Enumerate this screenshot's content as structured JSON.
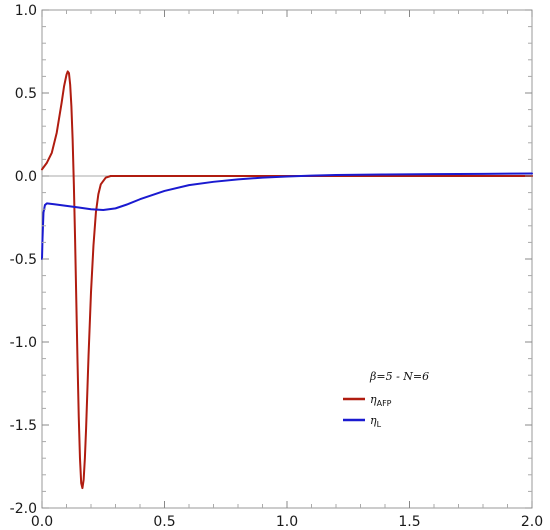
{
  "chart_data": {
    "type": "line",
    "title": "",
    "xlabel": "",
    "ylabel": "",
    "xlim": [
      0.0,
      2.0
    ],
    "ylim": [
      -2.0,
      1.0
    ],
    "xticks": [
      0.0,
      0.5,
      1.0,
      1.5,
      2.0
    ],
    "xtick_labels": [
      "0.0",
      "0.5",
      "1.0",
      "1.5",
      "2.0"
    ],
    "yticks": [
      1.0,
      0.5,
      0.0,
      -0.5,
      -1.0,
      -1.5,
      -2.0
    ],
    "ytick_labels": [
      "1.0",
      "0.5",
      "0.0",
      "-0.5",
      "-1.0",
      "-1.5",
      "-2.0"
    ],
    "grid": false,
    "legend": {
      "header": "β=5 - N=6",
      "placement": "lower-right",
      "entries": [
        {
          "symbol": "η",
          "subscript": "AFP",
          "color": "#b01c10"
        },
        {
          "symbol": "η",
          "subscript": "L",
          "color": "#1a1ad0"
        }
      ]
    },
    "series": [
      {
        "name": "η_AFP",
        "color": "#b01c10",
        "x": [
          0.0,
          0.02,
          0.04,
          0.06,
          0.08,
          0.09,
          0.1,
          0.105,
          0.11,
          0.115,
          0.12,
          0.125,
          0.13,
          0.135,
          0.14,
          0.145,
          0.15,
          0.155,
          0.16,
          0.165,
          0.17,
          0.175,
          0.18,
          0.185,
          0.19,
          0.2,
          0.21,
          0.22,
          0.23,
          0.24,
          0.26,
          0.28,
          0.3,
          0.32,
          0.35,
          0.4,
          0.6,
          1.0,
          1.5,
          2.0
        ],
        "y": [
          0.04,
          0.08,
          0.14,
          0.26,
          0.44,
          0.54,
          0.61,
          0.63,
          0.62,
          0.55,
          0.42,
          0.22,
          -0.05,
          -0.38,
          -0.75,
          -1.12,
          -1.45,
          -1.7,
          -1.85,
          -1.88,
          -1.83,
          -1.7,
          -1.52,
          -1.3,
          -1.08,
          -0.7,
          -0.42,
          -0.22,
          -0.11,
          -0.05,
          -0.01,
          0.0,
          0.0,
          0.0,
          0.0,
          0.0,
          0.0,
          0.0,
          0.0,
          0.0
        ]
      },
      {
        "name": "η_L",
        "color": "#1a1ad0",
        "x": [
          0.0,
          0.002,
          0.006,
          0.012,
          0.02,
          0.05,
          0.1,
          0.15,
          0.2,
          0.25,
          0.3,
          0.35,
          0.4,
          0.5,
          0.6,
          0.7,
          0.8,
          0.9,
          1.0,
          1.1,
          1.2,
          1.4,
          1.6,
          1.8,
          2.0
        ],
        "y": [
          -0.5,
          -0.38,
          -0.22,
          -0.175,
          -0.165,
          -0.17,
          -0.18,
          -0.19,
          -0.2,
          -0.205,
          -0.195,
          -0.17,
          -0.14,
          -0.09,
          -0.055,
          -0.035,
          -0.02,
          -0.01,
          -0.003,
          0.002,
          0.006,
          0.009,
          0.011,
          0.013,
          0.015
        ]
      }
    ]
  }
}
